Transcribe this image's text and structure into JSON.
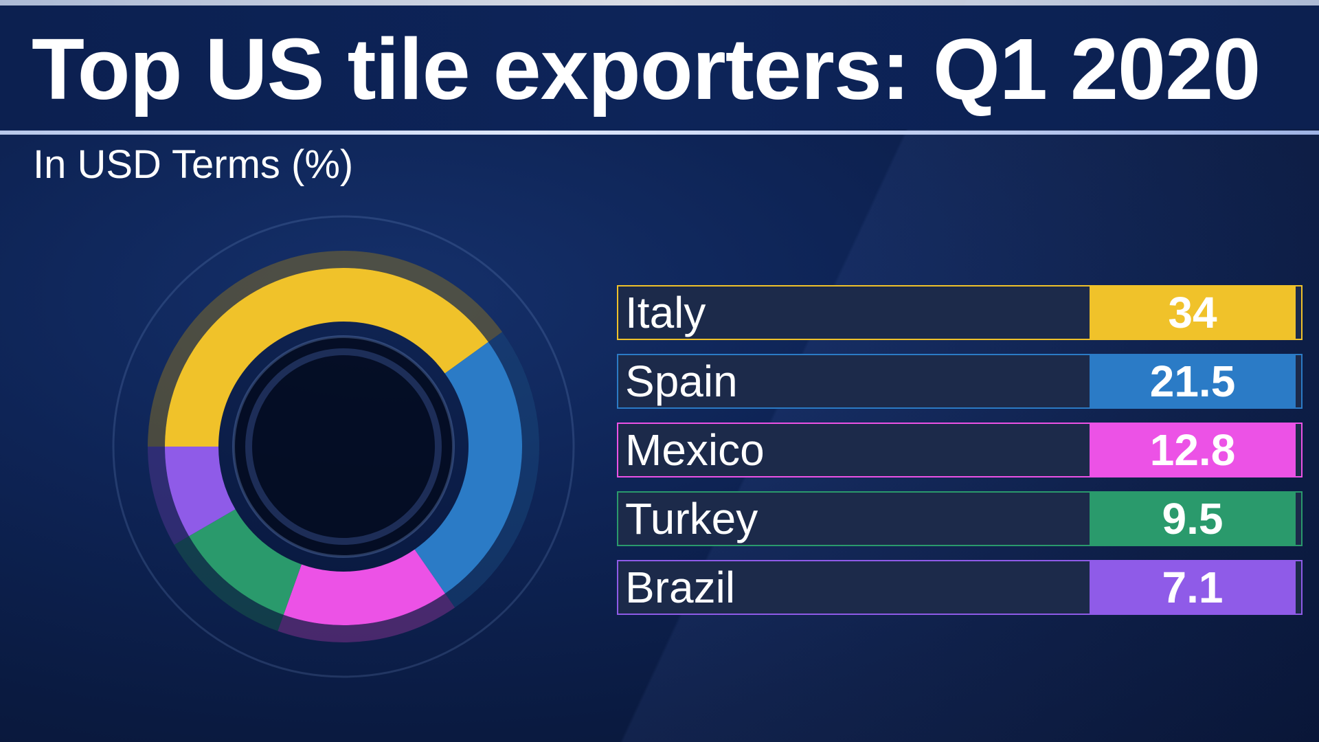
{
  "title": "Top US tile exporters: Q1 2020",
  "subtitle": "In USD Terms (%)",
  "chart_data": {
    "type": "pie",
    "title": "Top US tile exporters: Q1 2020",
    "subtitle": "In USD Terms (%)",
    "categories": [
      "Italy",
      "Spain",
      "Mexico",
      "Turkey",
      "Brazil"
    ],
    "values": [
      34,
      21.5,
      12.8,
      9.5,
      7.1
    ],
    "value_labels": [
      "34",
      "21.5",
      "12.8",
      "9.5",
      "7.1"
    ],
    "colors": [
      "#f0c22a",
      "#2b7bc6",
      "#ec52e6",
      "#2a9a6c",
      "#8f5be8"
    ],
    "legend": "right"
  },
  "colors": {
    "background": "#0b1d45",
    "row_text_panel": "#1c2a4a"
  }
}
